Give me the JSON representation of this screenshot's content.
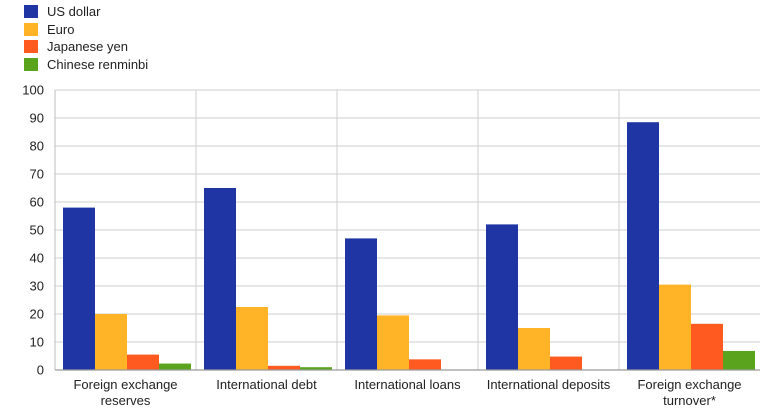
{
  "chart_data": {
    "type": "bar",
    "title": "",
    "xlabel": "",
    "ylabel": "",
    "ylim": [
      0,
      100
    ],
    "yticks": [
      0,
      10,
      20,
      30,
      40,
      50,
      60,
      70,
      80,
      90,
      100
    ],
    "grid": true,
    "legend_position": "top-left",
    "categories": [
      [
        "Foreign exchange",
        "reserves"
      ],
      [
        "International debt"
      ],
      [
        "International loans"
      ],
      [
        "International deposits"
      ],
      [
        "Foreign exchange",
        "turnover*"
      ]
    ],
    "series": [
      {
        "name": "US dollar",
        "color": "#1f35a3",
        "values": [
          58,
          65,
          47,
          52,
          88.5
        ]
      },
      {
        "name": "Euro",
        "color": "#ffb326",
        "values": [
          20,
          22.5,
          19.5,
          15,
          30.5
        ]
      },
      {
        "name": "Japanese yen",
        "color": "#ff5a1f",
        "values": [
          5.5,
          1.5,
          3.8,
          4.8,
          16.5
        ]
      },
      {
        "name": "Chinese renminbi",
        "color": "#5aa31c",
        "values": [
          2.3,
          1,
          0,
          0,
          6.8
        ]
      }
    ]
  }
}
